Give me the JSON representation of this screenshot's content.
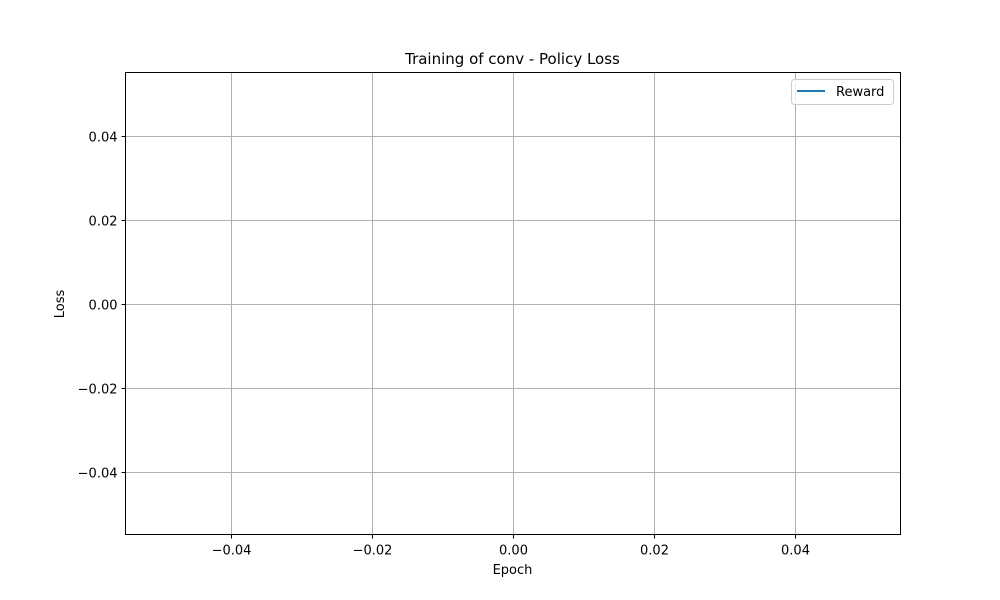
{
  "chart_data": {
    "type": "line",
    "title": "Training of conv - Policy Loss",
    "xlabel": "Epoch",
    "ylabel": "Loss",
    "xlim": [
      -0.055,
      0.055
    ],
    "ylim": [
      -0.055,
      0.055
    ],
    "xticks": [
      -0.04,
      -0.02,
      0.0,
      0.02,
      0.04
    ],
    "yticks": [
      -0.04,
      -0.02,
      0.0,
      0.02,
      0.04
    ],
    "xtick_labels": [
      "−0.04",
      "−0.02",
      "0.00",
      "0.02",
      "0.04"
    ],
    "ytick_labels": [
      "−0.04",
      "−0.02",
      "0.00",
      "0.02",
      "0.04"
    ],
    "grid": true,
    "legend_position": "top-right",
    "series": [
      {
        "name": "Reward",
        "color": "#1f77b4",
        "x": [],
        "y": []
      }
    ]
  }
}
